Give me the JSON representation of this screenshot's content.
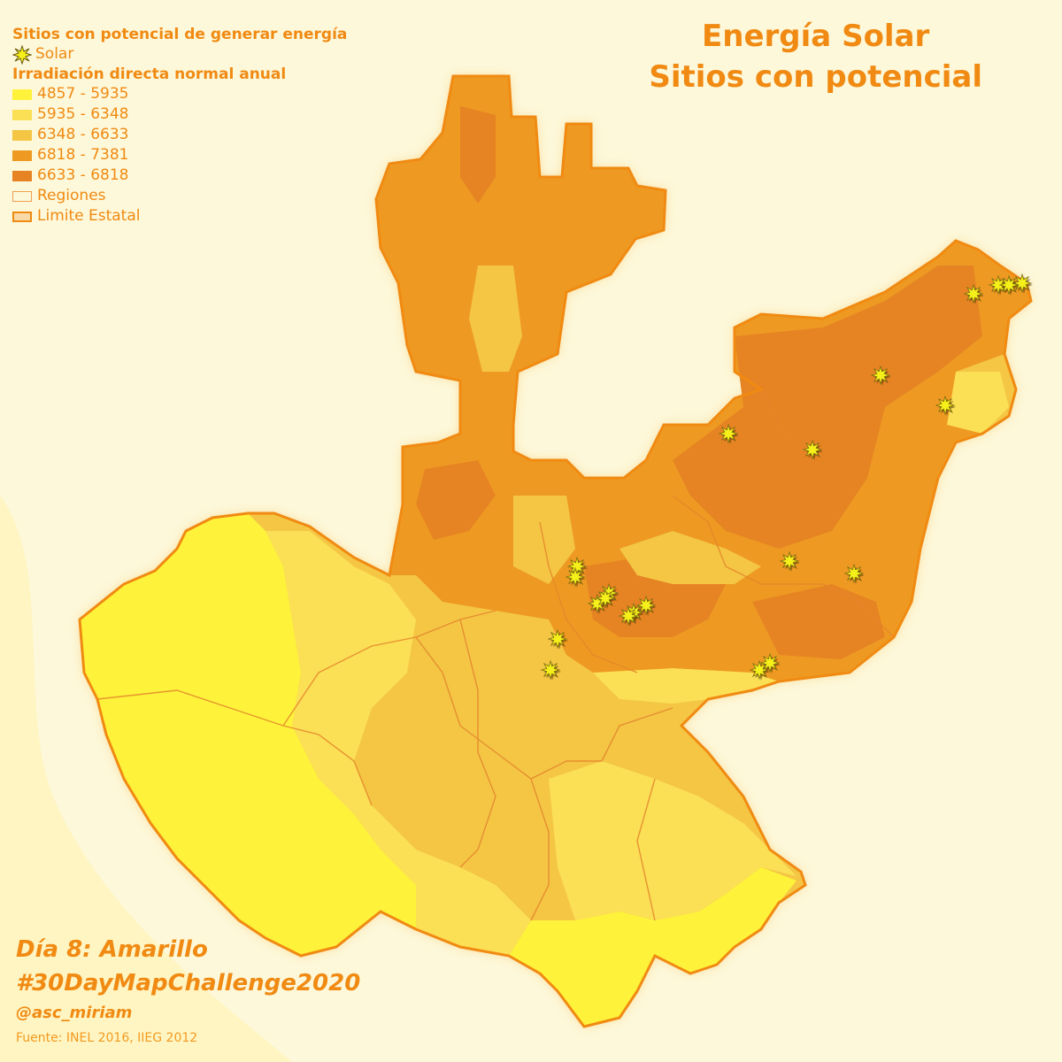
{
  "title": {
    "line1": "Energía Solar",
    "line2": "Sitios con potencial"
  },
  "legend": {
    "sites_heading": "Sitios con potencial de generar energía",
    "solar_label": "Solar",
    "irradiation_heading": "Irradiación directa normal anual",
    "classes": [
      {
        "label": "4857 - 5935",
        "color": "#fef33a"
      },
      {
        "label": "5935 - 6348",
        "color": "#fbdf55"
      },
      {
        "label": "6348 - 6633",
        "color": "#f4c644"
      },
      {
        "label": "6818 - 7381",
        "color": "#ee9a22"
      },
      {
        "label": "6633 - 6818",
        "color": "#e68424"
      }
    ],
    "regions_label": "Regiones",
    "state_label": "Limite Estatal"
  },
  "footer": {
    "day": "Día 8: Amarillo",
    "hashtag": "#30DayMapChallenge2020",
    "user": "@asc_miriam",
    "source": "Fuente: INEL 2016, IIEG 2012"
  },
  "colors": {
    "accent": "#f08a12",
    "background": "#fdf8d8",
    "state_border": "#f08a12",
    "star": "#f5ef1a"
  },
  "map": {
    "icon": "solar-site-star",
    "solar_sites_count": 22
  }
}
